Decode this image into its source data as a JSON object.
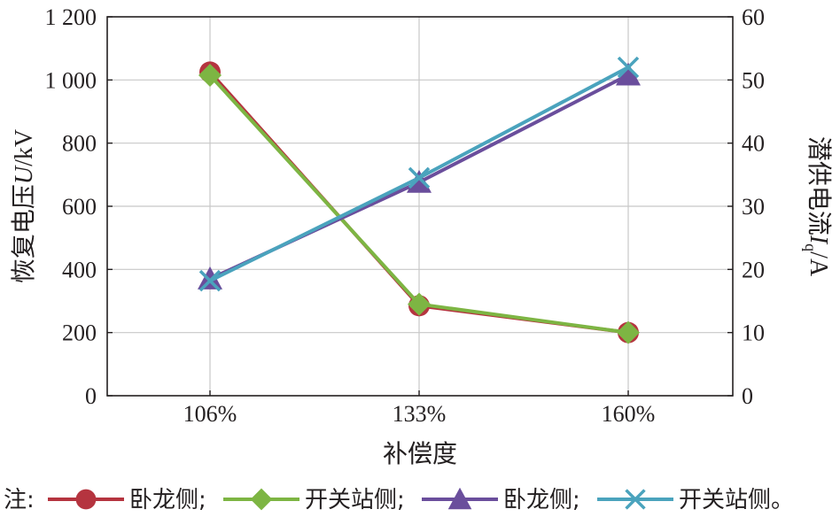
{
  "chart_data": {
    "type": "line",
    "categories": [
      "106%",
      "133%",
      "160%"
    ],
    "xlabel": "补偿度",
    "ylabel_left": {
      "prefix": "恢复电压",
      "var": "U",
      "unit": "/kV"
    },
    "ylabel_right": {
      "prefix": "潜供电流",
      "var": "I",
      "sub": "q",
      "unit": "/A"
    },
    "ylim_left": [
      0,
      1200
    ],
    "ylim_right": [
      0,
      60
    ],
    "yticks_left": [
      "0",
      "200",
      "400",
      "600",
      "800",
      "1 000",
      "1 200"
    ],
    "yticks_right": [
      "0",
      "10",
      "20",
      "30",
      "40",
      "50",
      "60"
    ],
    "grid": true,
    "series": [
      {
        "name": "卧龙侧",
        "axis": "left",
        "marker": "circle",
        "color": "#b5343f",
        "values": [
          1025,
          285,
          200
        ]
      },
      {
        "name": "开关站侧",
        "axis": "left",
        "marker": "diamond",
        "color": "#7db543",
        "values": [
          1015,
          290,
          200
        ]
      },
      {
        "name": "卧龙侧",
        "axis": "right",
        "marker": "triangle",
        "color": "#6a4e9c",
        "values": [
          18.5,
          33.8,
          50.8
        ]
      },
      {
        "name": "开关站侧",
        "axis": "right",
        "marker": "cross",
        "color": "#4aa3bd",
        "values": [
          18.2,
          34.5,
          52.0
        ]
      }
    ],
    "legend": {
      "placement": "bottom",
      "prefix": "注:",
      "separator": ";",
      "suffix": "。"
    }
  }
}
